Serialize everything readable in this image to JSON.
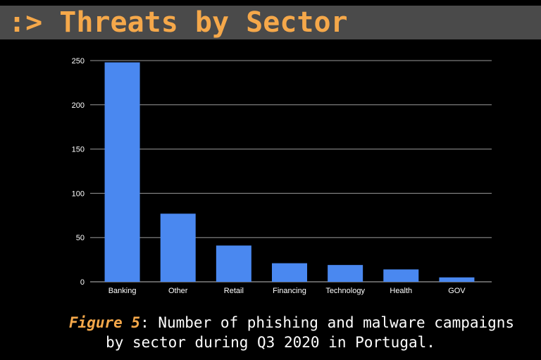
{
  "header": {
    "title": ":> Threats by Sector"
  },
  "caption": {
    "label": "Figure 5",
    "line1": ": Number of phishing and malware campaigns",
    "line2": "by sector during Q3 2020 in Portugal."
  },
  "colors": {
    "accent": "#f5a84a",
    "bar": "#4a88f0",
    "grid": "#9a9a9a",
    "text": "#ffffff"
  },
  "chart_data": {
    "type": "bar",
    "title": "",
    "xlabel": "",
    "ylabel": "",
    "categories": [
      "Banking",
      "Other",
      "Retail",
      "Financing",
      "Technology",
      "Health",
      "GOV"
    ],
    "values": [
      248,
      77,
      41,
      21,
      19,
      14,
      5
    ],
    "ylim": [
      0,
      250
    ],
    "yticks": [
      0,
      50,
      100,
      150,
      200,
      250
    ],
    "grid": true,
    "legend": "none"
  }
}
